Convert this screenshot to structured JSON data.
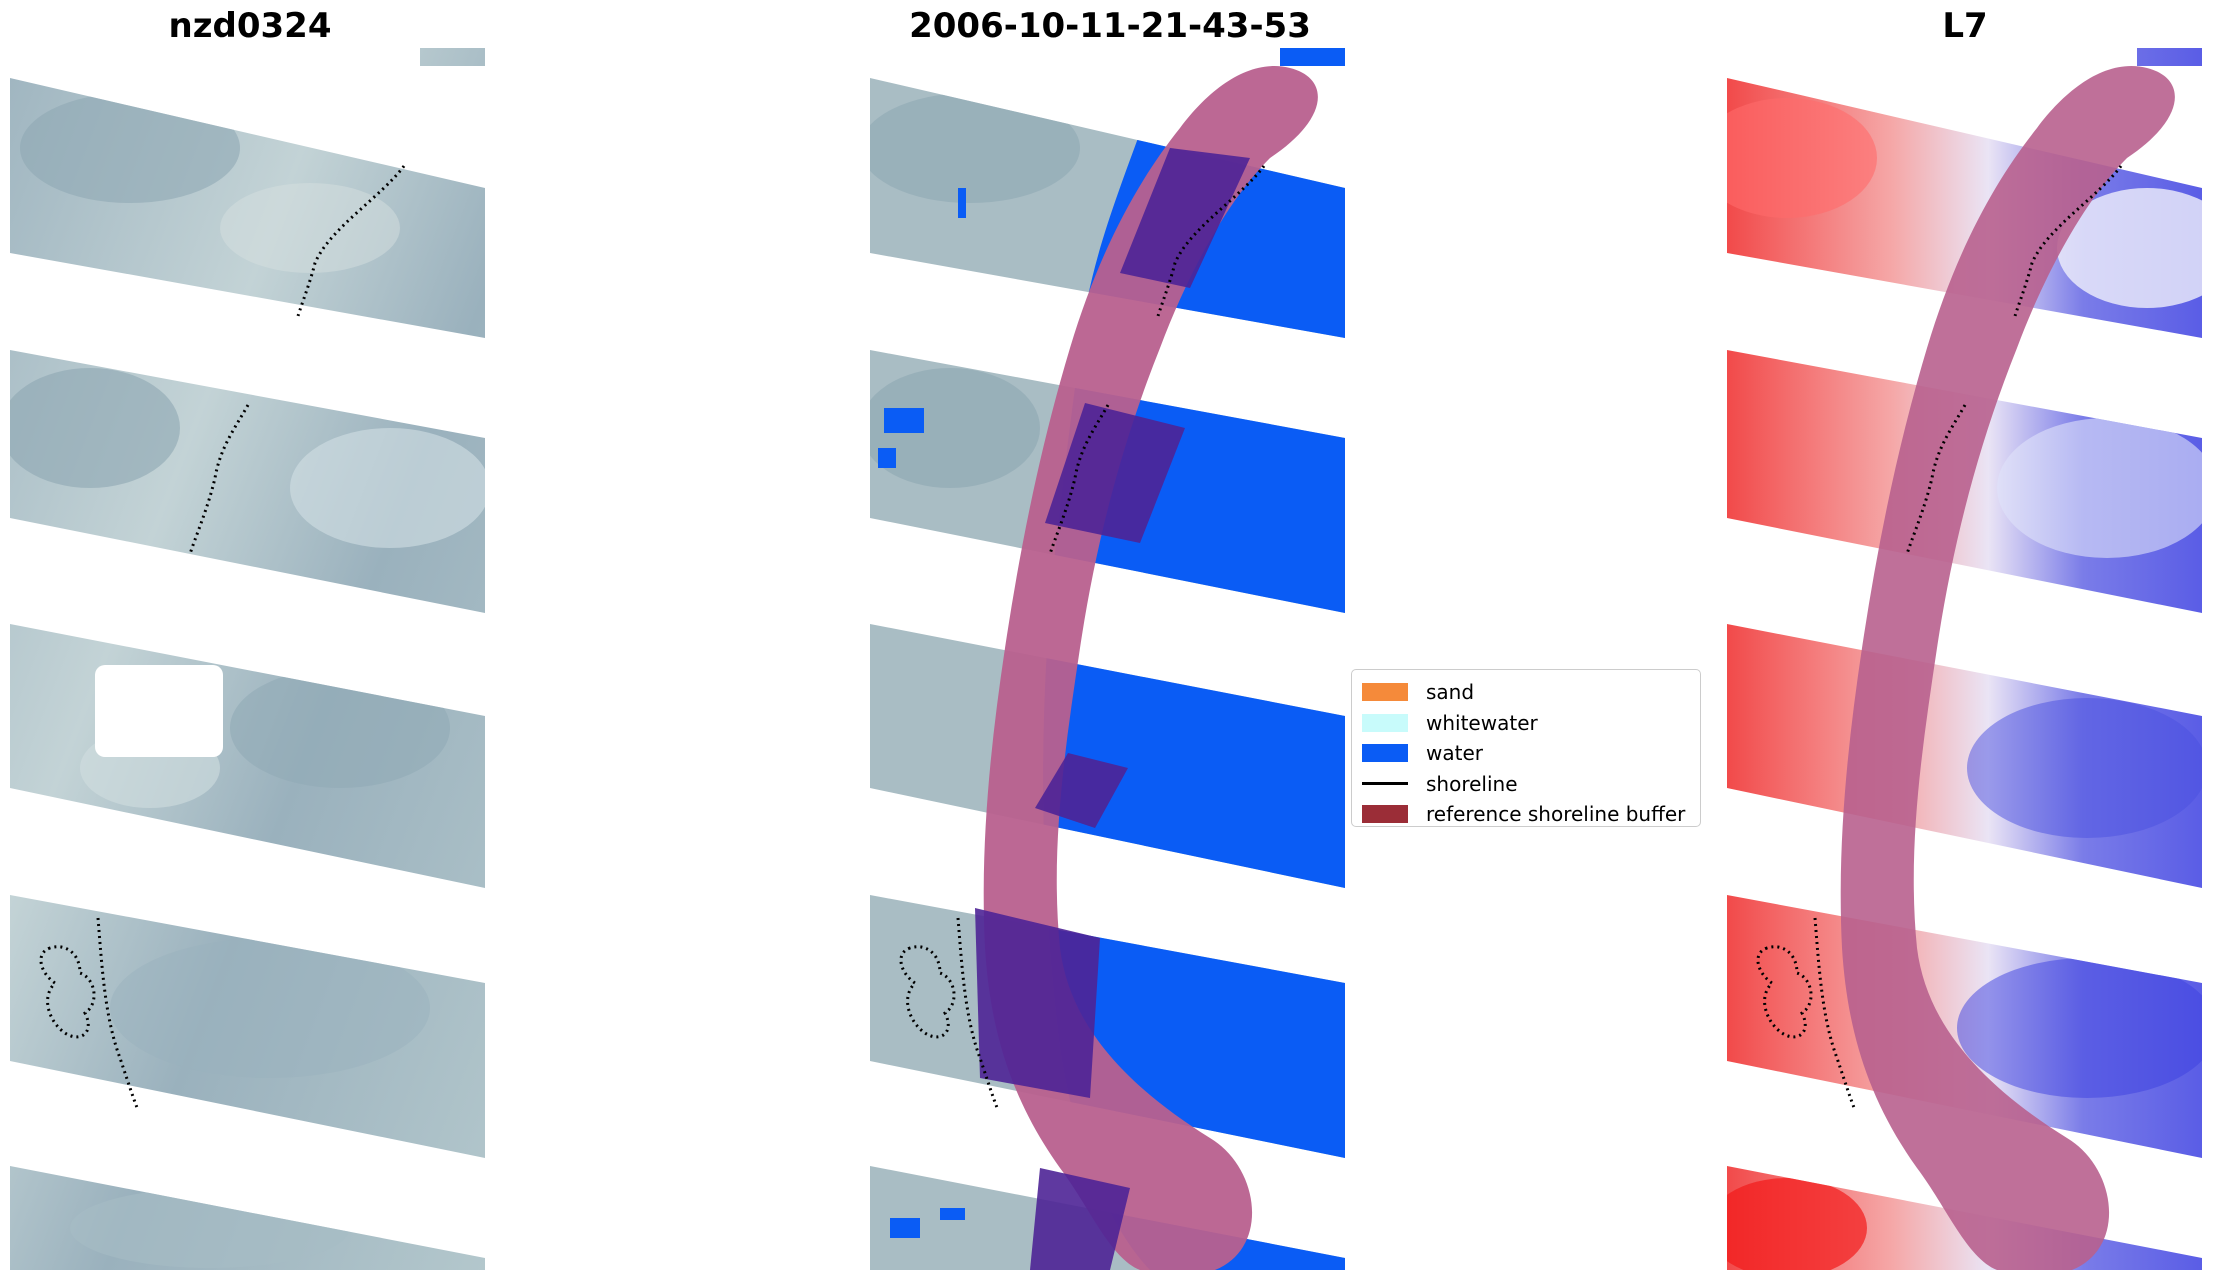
{
  "panels": [
    {
      "title": "nzd0324",
      "kind": "rgb"
    },
    {
      "title": "2006-10-11-21-43-53",
      "kind": "classified"
    },
    {
      "title": "L7",
      "kind": "index"
    }
  ],
  "legend": {
    "items": [
      {
        "label": "sand",
        "color": "#f58a3a",
        "type": "patch"
      },
      {
        "label": "whitewater",
        "color": "#c8fbfb",
        "type": "patch"
      },
      {
        "label": "water",
        "color": "#0a5cf5",
        "type": "patch"
      },
      {
        "label": "shoreline",
        "color": "#000000",
        "type": "line"
      },
      {
        "label": "reference shoreline buffer",
        "color": "#9b2d37",
        "type": "patch"
      }
    ]
  },
  "colors": {
    "rgb_base": "#a9bdc4",
    "rgb_dark": "#8ea6b2",
    "water": "#0a5cf5",
    "buffer_overlay": "#b8608e",
    "buffer_over_water": "#4e2496",
    "index_land": "#f04848",
    "index_water": "#4a4fe0",
    "shoreline": "#000000"
  }
}
